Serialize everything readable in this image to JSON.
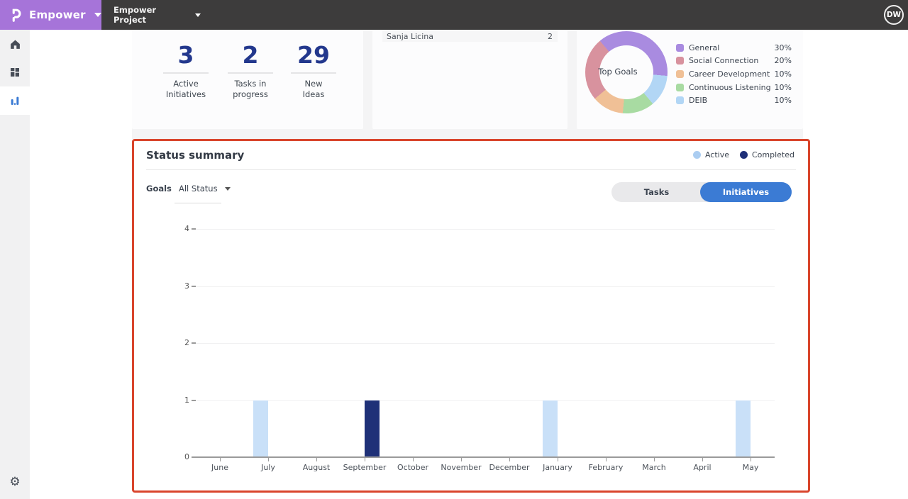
{
  "topbar": {
    "brand": "Empower",
    "project": "Empower Project",
    "avatar_initials": "DW"
  },
  "sidebar": {
    "items": [
      {
        "id": "home",
        "active": false
      },
      {
        "id": "dashboard",
        "active": false
      },
      {
        "id": "reports",
        "active": true
      },
      {
        "id": "settings",
        "active": false
      }
    ]
  },
  "stats": [
    {
      "value": "3",
      "label_line1": "Active",
      "label_line2": "Initiatives"
    },
    {
      "value": "2",
      "label_line1": "Tasks in",
      "label_line2": "progress"
    },
    {
      "value": "29",
      "label_line1": "New",
      "label_line2": "Ideas"
    }
  ],
  "people_list": {
    "rows": [
      {
        "name": "Sanja Licina",
        "value": "2"
      }
    ]
  },
  "top_goals": {
    "center_label": "Top Goals",
    "legend": [
      {
        "label": "General",
        "pct": "30%",
        "color": "#a98be0"
      },
      {
        "label": "Social Connection",
        "pct": "20%",
        "color": "#d8929e"
      },
      {
        "label": "Career Development",
        "pct": "10%",
        "color": "#f0c096"
      },
      {
        "label": "Continuous Listening",
        "pct": "10%",
        "color": "#a8dba2"
      },
      {
        "label": "DEIB",
        "pct": "10%",
        "color": "#b2d6f5"
      }
    ],
    "donut": {
      "start_deg": -40,
      "slice_order": [
        0,
        4,
        3,
        2,
        1
      ]
    }
  },
  "status_summary": {
    "title": "Status summary",
    "series_legend": [
      {
        "label": "Active",
        "color": "#abcdf1"
      },
      {
        "label": "Completed",
        "color": "#1f2f78"
      }
    ],
    "group_label": "Goals",
    "status_filter": "All Status",
    "toggle": {
      "options": [
        "Tasks",
        "Initiatives"
      ],
      "selected": "Initiatives"
    },
    "highlight_border_color": "#d9452c"
  },
  "chart_data": {
    "type": "bar",
    "title": "Status summary",
    "categories": [
      "June",
      "July",
      "August",
      "September",
      "October",
      "November",
      "December",
      "January",
      "February",
      "March",
      "April",
      "May"
    ],
    "series": [
      {
        "name": "Active",
        "color": "#c9e0f8",
        "values": [
          0,
          1,
          0,
          0,
          0,
          0,
          0,
          1,
          0,
          0,
          0,
          1
        ]
      },
      {
        "name": "Completed",
        "color": "#1f3178",
        "values": [
          0,
          0,
          0,
          1,
          0,
          0,
          0,
          0,
          0,
          0,
          0,
          0
        ]
      }
    ],
    "xlabel": "",
    "ylabel": "",
    "ylim": [
      0,
      4
    ],
    "yticks": [
      0,
      1,
      2,
      3,
      4
    ],
    "grid": true,
    "legend_position": "top-right"
  }
}
